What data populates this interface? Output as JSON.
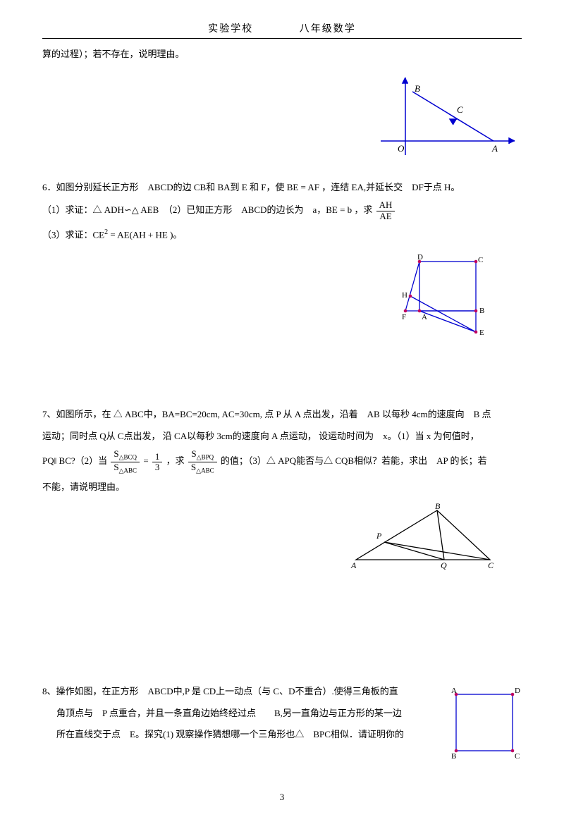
{
  "header": {
    "school": "实验学校",
    "grade": "八年级数学"
  },
  "p5_tail": "算的过程）；若不存在，说明理由。",
  "fig5": {
    "stroke": "#0000d0",
    "O": "O",
    "A": "A",
    "B": "B",
    "C": "C"
  },
  "p6": {
    "stem_a": "6．如图分别延长正方形　ABCD的边 CB和 BA到 E 和 F，使 BE = AF ，连结 EA,并延长交　DF于点 H。",
    "part1_a": "（1）求证：△ ADH∽△ AEB　（2）已知正方形　ABCD的边长为　a，BE = b ，求",
    "part1_frac_num": "AH",
    "part1_frac_den": "AE",
    "part3_a": "（3）求证：CE",
    "part3_b": " = AE(AH + HE )。",
    "fig": {
      "stroke": "#0000d0",
      "dot": "#c00060",
      "A": "A",
      "B": "B",
      "C": "C",
      "D": "D",
      "E": "E",
      "F": "F",
      "H": "H"
    }
  },
  "p7": {
    "stem_a": "7、如图所示，在 △ ABC中，BA=BC=20cm, AC=30cm, 点 P 从 A 点出发，沿着　AB 以每秒 4cm的速度向　B 点",
    "stem_b": "运动；同时点 Q从 C点出发， 沿 CA以每秒 3cm的速度向 A 点运动， 设运动时间为　x。（1）当 x 为何值时，",
    "part2_a": "PQ‖ BC?（2）当",
    "frac1_num": "S△BCQ",
    "frac1_den": "S△ABC",
    "eq": "=",
    "frac2_num": "1",
    "frac2_den": "3",
    "part2_b": "，求",
    "frac3_num": "S△BPQ",
    "frac3_den": "S△ABC",
    "part2_c": "的值；（3）△ APQ能否与△ CQB相似？若能，求出　AP 的长；若",
    "part2_d": "不能，请说明理由。",
    "fig": {
      "stroke": "#000",
      "A": "A",
      "B": "B",
      "C": "C",
      "P": "P",
      "Q": "Q"
    }
  },
  "p8": {
    "line1": "8、操作如图，在正方形　ABCD中,P 是 CD上一动点（与 C、D不重合）.使得三角板的直",
    "line2": "角顶点与　P 点重合，并且一条直角边始终经过点　　B,另一直角边与正方形的某一边",
    "line3": "所在直线交于点　E。探究(1) 观察操作猜想哪一个三角形也△　BPC相似．请证明你的",
    "fig": {
      "stroke": "#0000d0",
      "dot": "#c00060",
      "A": "A",
      "B": "B",
      "C": "C",
      "D": "D"
    }
  },
  "page_num": "3"
}
